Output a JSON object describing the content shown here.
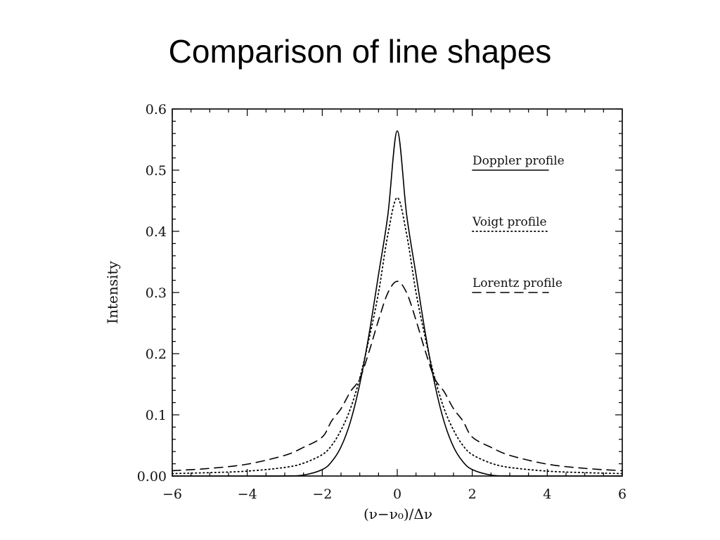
{
  "slide": {
    "title": "Comparison of line shapes"
  },
  "chart_data": {
    "type": "line",
    "title": "",
    "xlabel": "(ν−ν₀)/Δν",
    "ylabel": "Intensity",
    "xlim": [
      -6,
      6
    ],
    "ylim": [
      0,
      0.6
    ],
    "xticks": [
      -6,
      -4,
      -2,
      0,
      2,
      4,
      6
    ],
    "xtick_labels": [
      "−6",
      "−4",
      "−2",
      "0",
      "2",
      "4",
      "6"
    ],
    "yticks": [
      0,
      0.1,
      0.2,
      0.3,
      0.4,
      0.5,
      0.6
    ],
    "ytick_labels": [
      "0.00",
      "0.1",
      "0.2",
      "0.3",
      "0.4",
      "0.5",
      "0.6"
    ],
    "grid": false,
    "legend_position": "right",
    "x": [
      -6,
      -5,
      -4,
      -3,
      -2.5,
      -2,
      -1.75,
      -1.5,
      -1.25,
      -1,
      -0.75,
      -0.5,
      -0.25,
      0,
      0.25,
      0.5,
      0.75,
      1,
      1.25,
      1.5,
      1.75,
      2,
      2.5,
      3,
      4,
      5,
      6
    ],
    "series": [
      {
        "name": "Doppler profile",
        "style": "solid",
        "color": "#000000",
        "values": [
          0,
          0,
          0,
          0.0001,
          0.0016,
          0.0105,
          0.0234,
          0.0476,
          0.0886,
          0.1503,
          0.2327,
          0.3293,
          0.4272,
          0.5642,
          0.4272,
          0.3293,
          0.2327,
          0.1503,
          0.0886,
          0.0476,
          0.0234,
          0.0105,
          0.0016,
          0.0001,
          0,
          0,
          0
        ]
      },
      {
        "name": "Voigt profile",
        "style": "dotted",
        "color": "#000000",
        "values": [
          0.004,
          0.0055,
          0.008,
          0.014,
          0.021,
          0.035,
          0.05,
          0.075,
          0.11,
          0.16,
          0.225,
          0.3,
          0.395,
          0.455,
          0.395,
          0.3,
          0.225,
          0.16,
          0.11,
          0.075,
          0.05,
          0.035,
          0.021,
          0.014,
          0.008,
          0.0055,
          0.004
        ]
      },
      {
        "name": "Lorentz profile",
        "style": "dashed",
        "color": "#000000",
        "values": [
          0.0087,
          0.0125,
          0.0194,
          0.0338,
          0.0469,
          0.0637,
          0.0901,
          0.1101,
          0.1378,
          0.1592,
          0.2037,
          0.2546,
          0.2996,
          0.3183,
          0.2996,
          0.2546,
          0.2037,
          0.1592,
          0.1378,
          0.1101,
          0.0901,
          0.0637,
          0.0469,
          0.0338,
          0.0194,
          0.0125,
          0.0087
        ]
      }
    ]
  }
}
